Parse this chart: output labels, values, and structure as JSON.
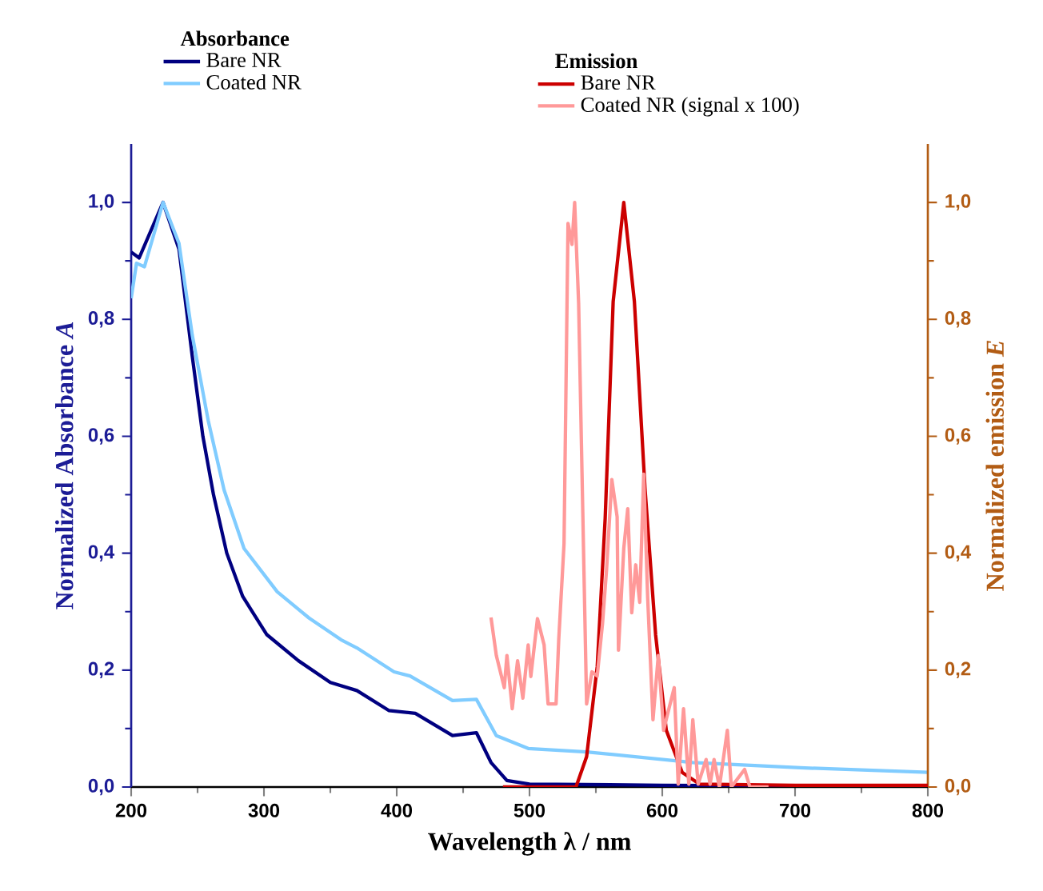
{
  "chart_data": {
    "type": "line",
    "xlabel": "Wavelength λ / nm",
    "ylabel": "Normalized Absorbance *A*",
    "y2label": "Normalized emission *E*",
    "annotations": [
      "Absorbance",
      "Emission"
    ],
    "xlim": [
      200,
      800
    ],
    "xticks": [
      200,
      300,
      400,
      500,
      600,
      700,
      800
    ],
    "ylim": [
      0,
      1.1
    ],
    "yticks": [
      {
        "value": 0,
        "label": "0,0"
      },
      {
        "value": 0.2,
        "label": "0,2"
      },
      {
        "value": 0.4,
        "label": "0,4"
      },
      {
        "value": 0.6,
        "label": "0,6"
      },
      {
        "value": 0.8,
        "label": "0,8"
      },
      {
        "value": 1.0,
        "label": "1,0"
      }
    ],
    "y2lim": [
      0,
      1.1
    ],
    "y2ticks": [
      {
        "value": 0,
        "label": "0,0"
      },
      {
        "value": 0.2,
        "label": "0,2"
      },
      {
        "value": 0.4,
        "label": "0,4"
      },
      {
        "value": 0.6,
        "label": "0,6"
      },
      {
        "value": 0.8,
        "label": "0,8"
      },
      {
        "value": 1.0,
        "label": "1,0"
      }
    ],
    "legend": "top",
    "grid": false,
    "marker": "none",
    "line_style": "solid",
    "series": [
      {
        "name": "Bare NR",
        "color": "#000080",
        "x": [
          200,
          206,
          224,
          236,
          246,
          254,
          262,
          272,
          284,
          302,
          326,
          350,
          370,
          394,
          414,
          442,
          460,
          471,
          483,
          500,
          600,
          700,
          800
        ],
        "values": [
          0.915,
          0.905,
          1.0,
          0.92,
          0.737,
          0.6,
          0.5,
          0.4,
          0.326,
          0.261,
          0.216,
          0.179,
          0.165,
          0.131,
          0.126,
          0.088,
          0.093,
          0.042,
          0.011,
          0.005,
          0.003,
          0.002,
          0.002
        ]
      },
      {
        "name": "Coated NR",
        "color": "#80ccff",
        "x": [
          200,
          204,
          210,
          224,
          236,
          246,
          258,
          270,
          285,
          310,
          334,
          358,
          370,
          398,
          410,
          442,
          460,
          475,
          499,
          543,
          623,
          704,
          800
        ],
        "values": [
          0.836,
          0.896,
          0.89,
          1.0,
          0.93,
          0.773,
          0.627,
          0.508,
          0.408,
          0.334,
          0.289,
          0.252,
          0.238,
          0.197,
          0.19,
          0.148,
          0.15,
          0.088,
          0.066,
          0.06,
          0.042,
          0.033,
          0.025
        ]
      },
      {
        "name": "Bare NR",
        "color": "#cc0000",
        "axis": "y2",
        "x": [
          480,
          535,
          543,
          551,
          557,
          563,
          571,
          579,
          587,
          595,
          603,
          615,
          628,
          700,
          800
        ],
        "values": [
          0.0,
          0.0,
          0.052,
          0.206,
          0.46,
          0.83,
          1.0,
          0.83,
          0.51,
          0.26,
          0.097,
          0.025,
          0.005,
          0.003,
          0.003
        ]
      },
      {
        "name": "Coated NR (signal x 100)",
        "color": "#ff9999",
        "axis": "y2",
        "x": [
          471,
          475,
          481,
          483,
          487,
          491,
          495,
          499,
          501,
          506,
          511,
          514,
          520,
          522,
          526,
          529,
          532,
          534,
          537,
          541,
          543,
          547,
          551,
          555,
          558,
          562,
          566,
          567,
          571,
          574,
          577,
          580,
          583,
          586,
          589,
          593,
          597,
          601,
          605,
          609,
          612,
          616,
          620,
          623,
          627,
          633,
          636,
          639,
          643,
          649,
          652,
          662,
          666,
          680
        ],
        "values": [
          0.29,
          0.225,
          0.17,
          0.225,
          0.134,
          0.216,
          0.152,
          0.243,
          0.189,
          0.288,
          0.243,
          0.142,
          0.142,
          0.252,
          0.416,
          0.964,
          0.928,
          1.0,
          0.827,
          0.37,
          0.142,
          0.197,
          0.19,
          0.28,
          0.371,
          0.526,
          0.462,
          0.234,
          0.408,
          0.476,
          0.298,
          0.38,
          0.316,
          0.535,
          0.324,
          0.115,
          0.225,
          0.097,
          0.134,
          0.17,
          0.005,
          0.134,
          0.005,
          0.115,
          0.005,
          0.047,
          0.005,
          0.047,
          0.0,
          0.097,
          0.0,
          0.03,
          0.0,
          0.0
        ]
      }
    ]
  }
}
